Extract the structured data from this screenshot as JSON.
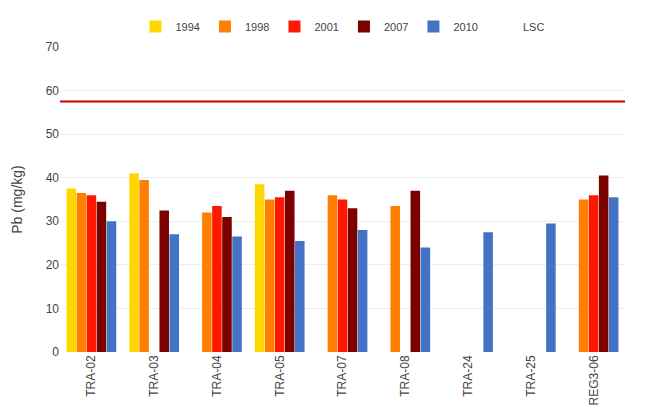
{
  "chart_data": {
    "type": "bar",
    "categories": [
      "TRA-02",
      "TRA-03",
      "TRA-04",
      "TRA-05",
      "TRA-07",
      "TRA-08",
      "TRA-24",
      "TRA-25",
      "REG3-06"
    ],
    "series": [
      {
        "name": "1994",
        "color": "#FFD700",
        "values": [
          37.5,
          41.0,
          null,
          38.5,
          null,
          null,
          null,
          null,
          null
        ]
      },
      {
        "name": "1998",
        "color": "#FF8000",
        "values": [
          36.5,
          39.5,
          32.0,
          35.0,
          36.0,
          33.5,
          null,
          null,
          35.0
        ]
      },
      {
        "name": "2001",
        "color": "#FF1800",
        "values": [
          36.0,
          null,
          33.5,
          35.5,
          35.0,
          null,
          null,
          null,
          36.0
        ]
      },
      {
        "name": "2007",
        "color": "#7B0000",
        "values": [
          34.5,
          32.5,
          31.0,
          37.0,
          33.0,
          37.0,
          null,
          null,
          40.5
        ]
      },
      {
        "name": "2010",
        "color": "#4472C4",
        "values": [
          30.0,
          27.0,
          26.5,
          25.5,
          28.0,
          24.0,
          27.5,
          29.5,
          35.5
        ]
      },
      {
        "name": "LSC",
        "type": "hline",
        "color": "#CC0000",
        "value": 57.5
      }
    ],
    "ylabel": "Pb (mg/kg)",
    "ylim": [
      0,
      70
    ],
    "yticks": [
      0,
      10,
      20,
      30,
      40,
      50,
      60,
      70
    ],
    "grid": true,
    "legend": "top"
  }
}
